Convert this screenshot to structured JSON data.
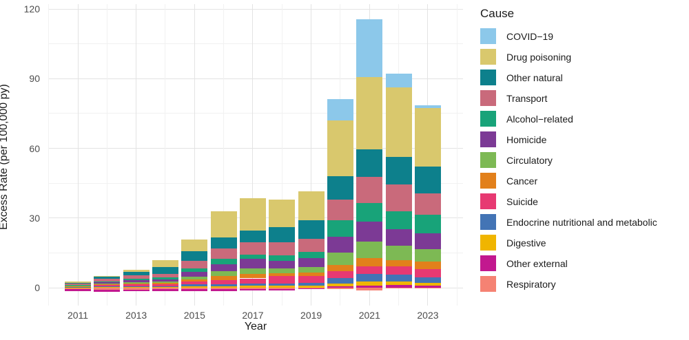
{
  "figure": {
    "y_axis_title": "Excess Rate (per 100,000 py)",
    "x_axis_title": "Year",
    "legend_title": "Cause"
  },
  "chart_data": {
    "type": "bar",
    "stacked": true,
    "title": "",
    "xlabel": "Year",
    "ylabel": "Excess Rate (per 100,000 py)",
    "legend_title": "Cause",
    "legend_position": "right",
    "grid": true,
    "x": [
      2011,
      2012,
      2013,
      2014,
      2015,
      2016,
      2017,
      2018,
      2019,
      2020,
      2021,
      2022,
      2023
    ],
    "x_tick_labels": [
      "2011",
      "2013",
      "2015",
      "2017",
      "2019",
      "2021",
      "2023"
    ],
    "y_ticks": [
      0,
      30,
      60,
      90,
      120
    ],
    "y_minor_ticks": [
      15,
      45,
      75,
      105
    ],
    "ylim": [
      -8,
      122
    ],
    "stack_order_note": "first series renders at top of positive stack; negative values stack below zero",
    "series": [
      {
        "name": "COVID−19",
        "color": "#8cc8ea",
        "values": [
          0,
          0,
          0,
          0,
          0,
          0,
          0,
          0,
          0,
          9.2,
          24.9,
          5.9,
          1.2
        ]
      },
      {
        "name": "Drug poisoning",
        "color": "#d9c86d",
        "values": [
          0.6,
          0.3,
          0.9,
          3.0,
          5.0,
          11.2,
          14.0,
          11.7,
          12.4,
          24.0,
          31.1,
          29.9,
          25.1
        ]
      },
      {
        "name": "Other natural",
        "color": "#0d808c",
        "values": [
          0.2,
          0.9,
          1.5,
          2.8,
          4.0,
          4.7,
          4.9,
          6.6,
          8.1,
          10.1,
          12.0,
          11.9,
          11.5
        ]
      },
      {
        "name": "Transport",
        "color": "#c96a7b",
        "values": [
          0.5,
          1.2,
          1.5,
          1.6,
          3.4,
          4.6,
          5.5,
          5.8,
          5.4,
          8.9,
          11.2,
          11.4,
          9.4
        ]
      },
      {
        "name": "Alcohol−related",
        "color": "#18a379",
        "values": [
          0.2,
          0.4,
          0.6,
          0.7,
          1.5,
          2.2,
          1.8,
          2.3,
          2.8,
          7.1,
          7.9,
          7.7,
          8.0
        ]
      },
      {
        "name": "Homicide",
        "color": "#7c3a95",
        "values": [
          0.3,
          0.6,
          0.9,
          1.1,
          2.0,
          3.0,
          4.0,
          3.1,
          3.7,
          6.8,
          8.7,
          7.3,
          6.7
        ]
      },
      {
        "name": "Circulatory",
        "color": "#7db954",
        "values": [
          0.1,
          0.3,
          0.4,
          0.6,
          1.2,
          2.2,
          2.5,
          2.2,
          2.4,
          5.3,
          7.1,
          6.2,
          5.3
        ]
      },
      {
        "name": "Cancer",
        "color": "#e2801b",
        "values": [
          0.1,
          0.2,
          0.3,
          0.4,
          0.9,
          1.5,
          1.9,
          1.3,
          1.6,
          2.6,
          3.5,
          2.7,
          3.3
        ]
      },
      {
        "name": "Suicide",
        "color": "#e73972",
        "values": [
          0.3,
          0.7,
          0.9,
          0.9,
          1.3,
          2.0,
          2.2,
          3.0,
          2.8,
          3.0,
          3.4,
          3.6,
          3.6
        ]
      },
      {
        "name": "Endocrine nutritional and metabolic",
        "color": "#4374b5",
        "values": [
          0.2,
          0.3,
          0.4,
          0.4,
          0.8,
          0.8,
          1.0,
          1.0,
          1.2,
          2.3,
          3.0,
          2.9,
          2.3
        ]
      },
      {
        "name": "Digestive",
        "color": "#f0b500",
        "values": [
          0.1,
          0.2,
          0.3,
          0.3,
          0.6,
          0.6,
          0.8,
          0.9,
          1.0,
          1.2,
          2.0,
          1.4,
          1.3
        ]
      },
      {
        "name": "Other external",
        "color": "#c2188f",
        "values": [
          -0.8,
          -0.9,
          -0.8,
          -0.7,
          -0.9,
          -0.8,
          -0.6,
          -0.5,
          -0.3,
          0.6,
          0.8,
          1.2,
          0.8
        ]
      },
      {
        "name": "Respiratory",
        "color": "#f58273",
        "values": [
          -0.7,
          -1.0,
          -0.8,
          -0.7,
          -0.7,
          -0.6,
          -0.5,
          -0.6,
          -0.3,
          -0.6,
          -1.1,
          -0.4,
          -0.4
        ]
      }
    ]
  }
}
